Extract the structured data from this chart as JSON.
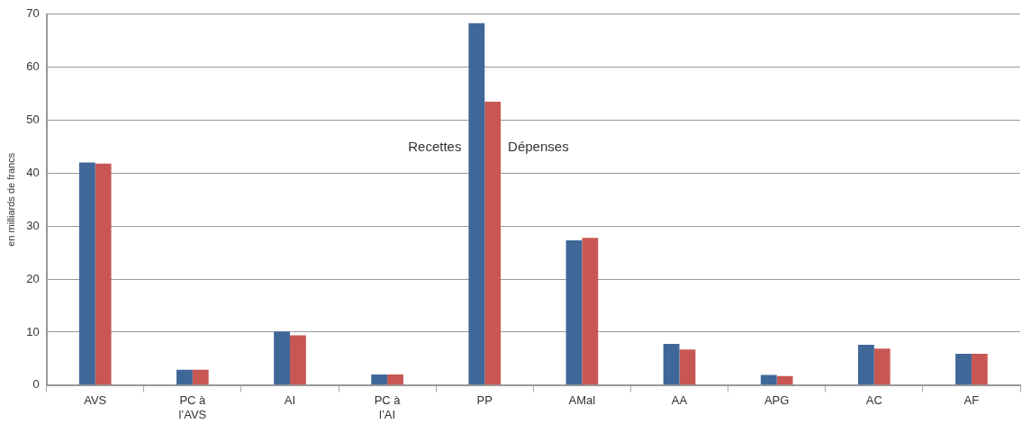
{
  "chart_data": {
    "type": "bar",
    "ylabel": "en milliards de francs",
    "categories": [
      "AVS",
      "PC à l’AVS",
      "AI",
      "PC à l’AI",
      "PP",
      "AMal",
      "AA",
      "APG",
      "AC",
      "AF"
    ],
    "series": [
      {
        "name": "Recettes",
        "color": "#3f6899",
        "values": [
          42.0,
          2.9,
          10.1,
          2.0,
          68.3,
          27.3,
          7.8,
          1.9,
          7.6,
          5.9
        ]
      },
      {
        "name": "Dépenses",
        "color": "#c85753",
        "values": [
          41.8,
          2.9,
          9.4,
          2.0,
          53.5,
          27.8,
          6.7,
          1.7,
          6.9,
          5.9
        ]
      }
    ],
    "ylim": [
      0,
      70
    ],
    "yticks": [
      0,
      10,
      20,
      30,
      40,
      50,
      60,
      70
    ],
    "grid": "y",
    "legend": false
  }
}
